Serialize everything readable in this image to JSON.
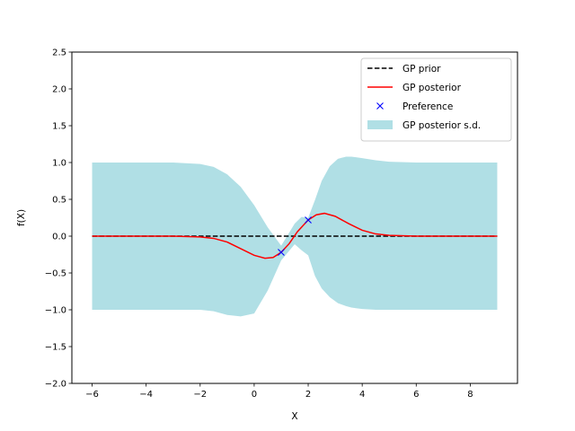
{
  "chart_data": {
    "type": "line",
    "title": "",
    "xlabel": "X",
    "ylabel": "f(X)",
    "xlim": [
      -6.75,
      9.75
    ],
    "ylim": [
      -2.0,
      2.5
    ],
    "xticks": [
      -6,
      -4,
      -2,
      0,
      2,
      4,
      6,
      8
    ],
    "xtick_labels": [
      "−6",
      "−4",
      "−2",
      "0",
      "2",
      "4",
      "6",
      "8"
    ],
    "yticks": [
      -2.0,
      -1.5,
      -1.0,
      -0.5,
      0.0,
      0.5,
      1.0,
      1.5,
      2.0,
      2.5
    ],
    "ytick_labels": [
      "−2.0",
      "−1.5",
      "−1.0",
      "−0.5",
      "0.0",
      "0.5",
      "1.0",
      "1.5",
      "2.0",
      "2.5"
    ],
    "grid": false,
    "legend_position": "top-right",
    "series": [
      {
        "name": "GP prior",
        "kind": "line",
        "style": "dashed",
        "color": "#000000",
        "x": [
          -6,
          9
        ],
        "y": [
          0.0,
          0.0
        ]
      },
      {
        "name": "GP posterior",
        "kind": "line",
        "style": "solid",
        "color": "#ff0000",
        "x": [
          -6,
          -3,
          -2,
          -1.5,
          -1,
          -0.5,
          0,
          0.4,
          0.7,
          1,
          1.3,
          1.6,
          2,
          2.3,
          2.6,
          3,
          3.5,
          4,
          4.5,
          5,
          6,
          9
        ],
        "y": [
          0.0,
          0.0,
          -0.01,
          -0.03,
          -0.08,
          -0.17,
          -0.26,
          -0.3,
          -0.29,
          -0.22,
          -0.1,
          0.06,
          0.22,
          0.29,
          0.31,
          0.27,
          0.17,
          0.08,
          0.03,
          0.01,
          0.0,
          0.0
        ]
      },
      {
        "name": "Preference",
        "kind": "scatter",
        "marker": "x",
        "color": "#0000ff",
        "x": [
          1.0,
          2.0
        ],
        "y": [
          -0.22,
          0.22
        ]
      },
      {
        "name": "GP posterior s.d.",
        "kind": "band",
        "color": "#b0dfe5",
        "x": [
          -6,
          -3,
          -2,
          -1.5,
          -1,
          -0.5,
          0,
          0.5,
          1,
          1.5,
          1.75,
          2,
          2.25,
          2.5,
          2.8,
          3.1,
          3.4,
          3.6,
          3.8,
          4,
          4.5,
          5,
          6,
          9
        ],
        "upper": [
          1.0,
          1.0,
          0.98,
          0.94,
          0.84,
          0.67,
          0.42,
          0.12,
          -0.13,
          0.17,
          0.26,
          0.25,
          0.49,
          0.75,
          0.95,
          1.05,
          1.08,
          1.08,
          1.07,
          1.06,
          1.03,
          1.01,
          1.0,
          1.0
        ],
        "lower": [
          -1.0,
          -1.0,
          -1.0,
          -1.02,
          -1.07,
          -1.09,
          -1.05,
          -0.74,
          -0.33,
          -0.11,
          -0.19,
          -0.26,
          -0.54,
          -0.71,
          -0.83,
          -0.91,
          -0.95,
          -0.97,
          -0.98,
          -0.99,
          -1.0,
          -1.0,
          -1.0,
          -1.0
        ]
      }
    ]
  }
}
